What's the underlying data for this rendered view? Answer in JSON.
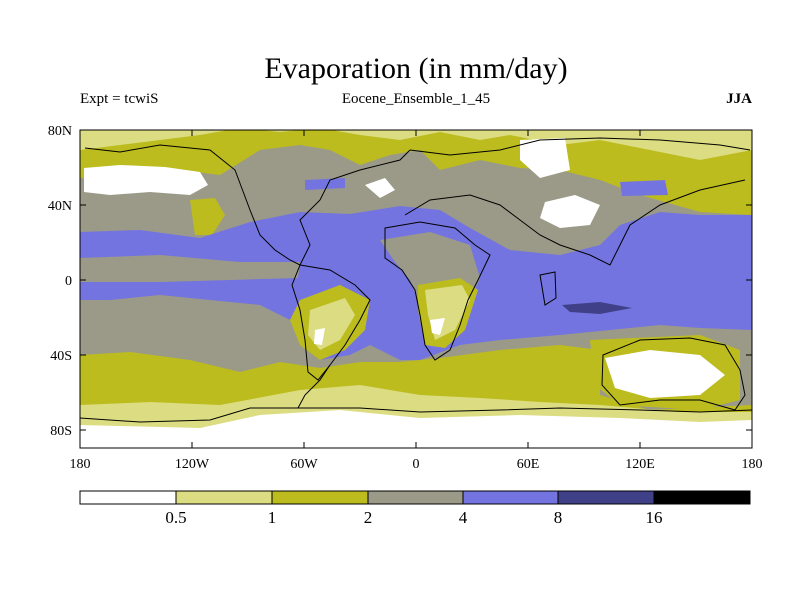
{
  "title": "Evaporation (in mm/day)",
  "experiment_label": "Expt = tcwiS",
  "run_label": "Eocene_Ensemble_1_45",
  "season_label": "JJA",
  "map": {
    "projection": "cylindrical equidistant",
    "lat_ticks": [
      "80N",
      "40N",
      "0",
      "40S",
      "80S"
    ],
    "lon_ticks": [
      "180",
      "120W",
      "60W",
      "0",
      "60E",
      "120E",
      "180"
    ]
  },
  "legend": {
    "colors": [
      "#ffffff",
      "#dcdc82",
      "#bcbc1e",
      "#9b9a88",
      "#7474e0",
      "#404088",
      "#000000"
    ],
    "labels": [
      "0.5",
      "1",
      "2",
      "4",
      "8",
      "16"
    ]
  },
  "colors": {
    "band_white": "#ffffff",
    "band_pale": "#dcdc82",
    "band_olive": "#bcbc1e",
    "band_gray": "#9b9a88",
    "band_blue": "#7474e0",
    "band_navy": "#404088",
    "band_black": "#000000"
  }
}
